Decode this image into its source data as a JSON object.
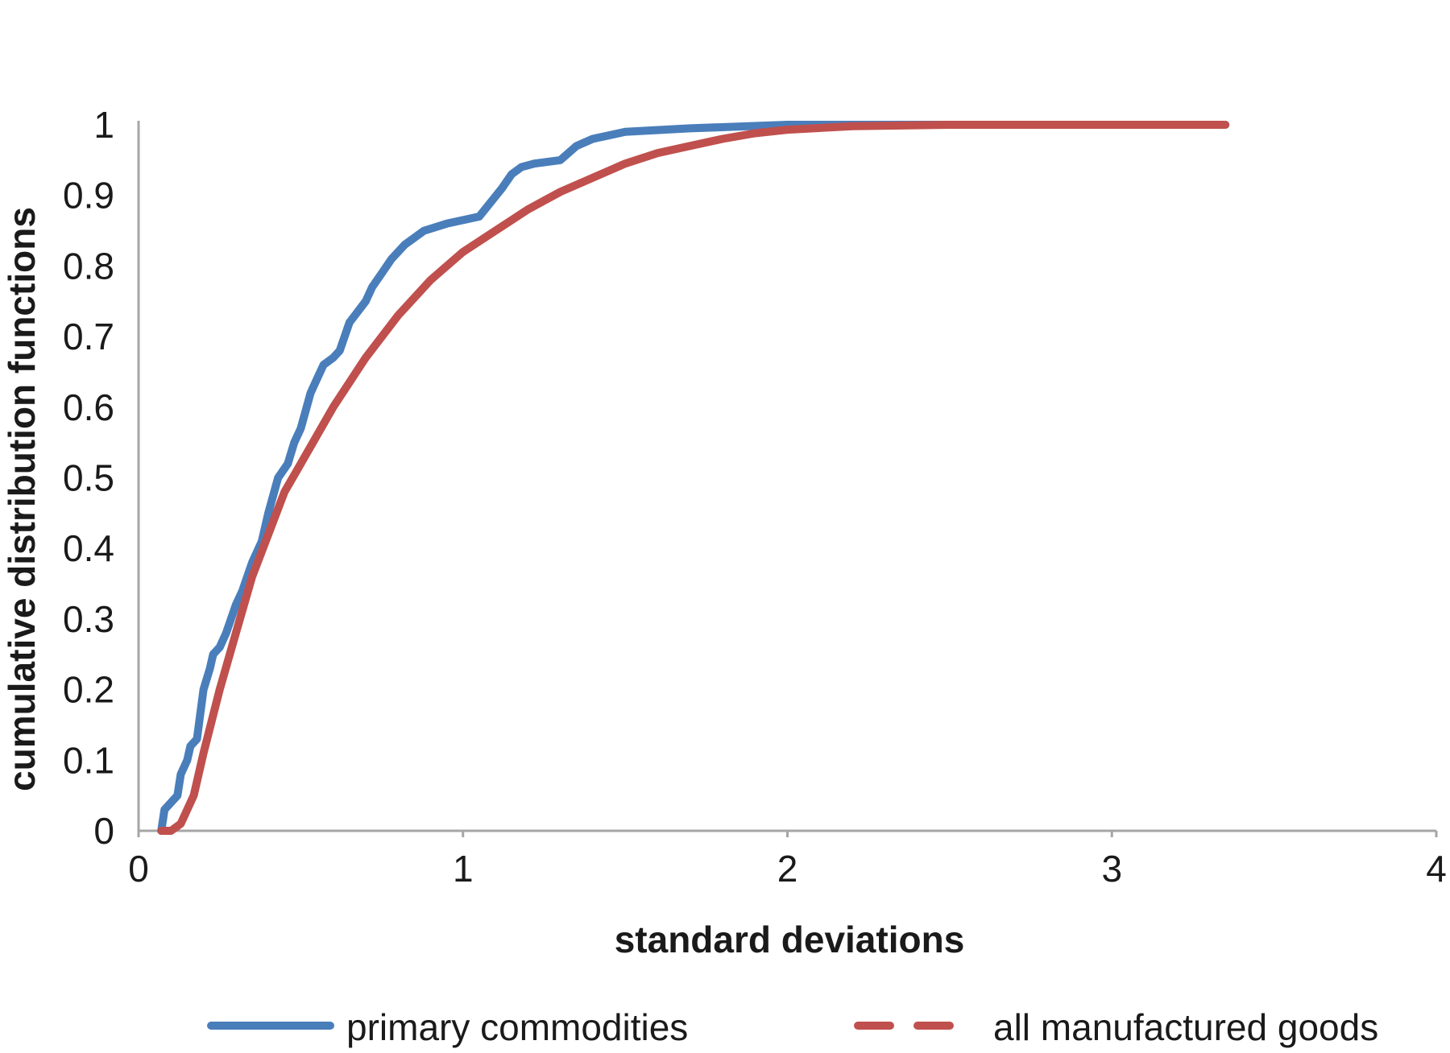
{
  "chart_data": {
    "type": "line",
    "title": "",
    "xlabel": "standard deviations",
    "ylabel": "cumulative distribution functions",
    "xlim": [
      0,
      4
    ],
    "ylim": [
      0,
      1
    ],
    "x_ticks": [
      "0",
      "1",
      "2",
      "3",
      "4"
    ],
    "y_ticks": [
      "0",
      "0.1",
      "0.2",
      "0.3",
      "0.4",
      "0.5",
      "0.6",
      "0.7",
      "0.8",
      "0.9",
      "1"
    ],
    "grid": false,
    "legend_position": "bottom",
    "series": [
      {
        "name": "primary commodities",
        "color": "#4a7ebb",
        "dash": "solid",
        "x": [
          0.07,
          0.08,
          0.1,
          0.12,
          0.13,
          0.15,
          0.16,
          0.18,
          0.2,
          0.22,
          0.23,
          0.25,
          0.27,
          0.3,
          0.32,
          0.35,
          0.38,
          0.4,
          0.43,
          0.46,
          0.48,
          0.5,
          0.53,
          0.55,
          0.57,
          0.6,
          0.62,
          0.65,
          0.7,
          0.72,
          0.75,
          0.78,
          0.82,
          0.88,
          0.95,
          1.0,
          1.05,
          1.12,
          1.15,
          1.18,
          1.22,
          1.3,
          1.35,
          1.4,
          1.5,
          1.7,
          2.0,
          2.2,
          2.5,
          3.0,
          3.35
        ],
        "y": [
          0.0,
          0.03,
          0.04,
          0.05,
          0.08,
          0.1,
          0.12,
          0.13,
          0.2,
          0.23,
          0.25,
          0.26,
          0.28,
          0.32,
          0.34,
          0.38,
          0.41,
          0.45,
          0.5,
          0.52,
          0.55,
          0.57,
          0.62,
          0.64,
          0.66,
          0.67,
          0.68,
          0.72,
          0.75,
          0.77,
          0.79,
          0.81,
          0.83,
          0.85,
          0.86,
          0.865,
          0.87,
          0.91,
          0.93,
          0.94,
          0.945,
          0.95,
          0.97,
          0.98,
          0.99,
          0.995,
          1.0,
          1.0,
          1.0,
          1.0,
          1.0
        ]
      },
      {
        "name": "all manufactured goods",
        "color": "#c0504d",
        "dash": "dashed",
        "x": [
          0.07,
          0.1,
          0.13,
          0.17,
          0.2,
          0.25,
          0.3,
          0.35,
          0.4,
          0.45,
          0.5,
          0.55,
          0.6,
          0.7,
          0.8,
          0.9,
          1.0,
          1.1,
          1.2,
          1.3,
          1.4,
          1.5,
          1.6,
          1.7,
          1.8,
          1.9,
          2.0,
          2.2,
          2.5,
          3.0,
          3.35
        ],
        "y": [
          0.0,
          0.0,
          0.01,
          0.05,
          0.11,
          0.2,
          0.28,
          0.36,
          0.42,
          0.48,
          0.52,
          0.56,
          0.6,
          0.67,
          0.73,
          0.78,
          0.82,
          0.85,
          0.88,
          0.905,
          0.925,
          0.945,
          0.96,
          0.97,
          0.98,
          0.988,
          0.993,
          0.998,
          1.0,
          1.0,
          1.0
        ]
      }
    ]
  }
}
